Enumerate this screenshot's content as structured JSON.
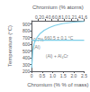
{
  "chart_data": {
    "type": "line",
    "x_label": "Chromium (% % of mass)",
    "x2_label": "Chromium (% atoms)",
    "y_label": "Temperature (°C)",
    "series": [
      {
        "type": "line",
        "x": [
          0.0,
          0.05,
          0.12,
          0.25,
          0.4,
          0.6,
          0.85,
          1.1,
          1.5,
          2.0,
          2.5
        ],
        "values": [
          250,
          500,
          620,
          700,
          760,
          810,
          850,
          880,
          910,
          930,
          940
        ],
        "color": "#7ecfe8"
      },
      {
        "type": "line",
        "x": [
          0,
          2.5
        ],
        "values": [
          660.5,
          660.5
        ],
        "color": "#7ecfe8"
      }
    ],
    "xlim": [
      0,
      2.5
    ],
    "xticks": [
      0,
      0.5,
      {
        "value": 1,
        "label": "1.0"
      },
      1.5,
      {
        "value": 2,
        "label": "2.0"
      },
      2.5
    ],
    "x2lim": [
      0,
      1.6
    ],
    "x2ticks": [
      0.2,
      0.4,
      0.6,
      0.8,
      {
        "value": 1,
        "label": "1.0"
      },
      1.2,
      1.4,
      1.6
    ],
    "ylim": [
      200,
      950
    ],
    "yticks": [
      200,
      300,
      400,
      500,
      600,
      700,
      800,
      900
    ],
    "annotations": [
      {
        "text": "(Al)",
        "x": 0.07,
        "y": 590
      },
      {
        "text": "(Al) + Al₄Cr",
        "x": 1.2,
        "y": 400
      },
      {
        "text": "0.7%",
        "x": 0.32,
        "y": 640
      },
      {
        "text": "660.5 ± 0.1 °C",
        "x": 0.52,
        "y": 668
      }
    ],
    "grid": false
  }
}
